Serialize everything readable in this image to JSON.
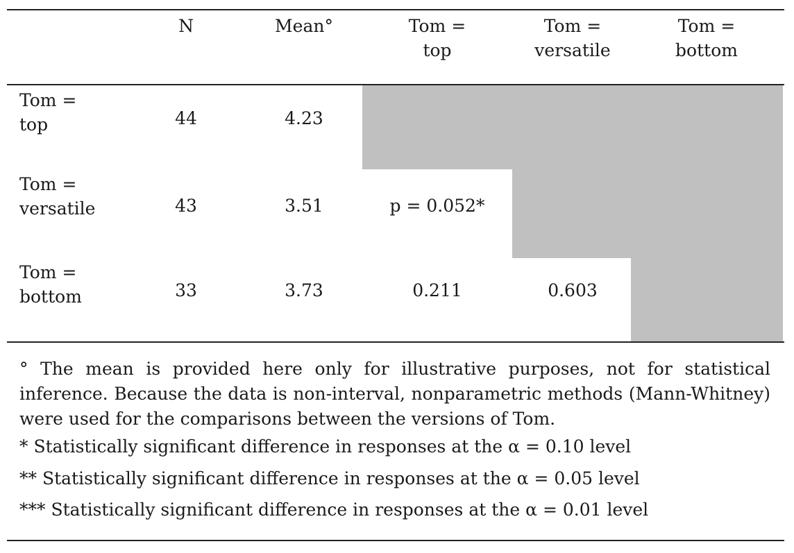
{
  "table": {
    "headers": {
      "n": "N",
      "mean": "Mean°",
      "col_top": [
        "Tom =",
        "top"
      ],
      "col_versatile": [
        "Tom =",
        "versatile"
      ],
      "col_bottom": [
        "Tom =",
        "bottom"
      ]
    },
    "rows": [
      {
        "label": [
          "Tom =",
          "top"
        ],
        "n": "44",
        "mean": "4.23",
        "vs_top": "",
        "vs_versatile": ""
      },
      {
        "label": [
          "Tom =",
          "versatile"
        ],
        "n": "43",
        "mean": "3.51",
        "vs_top": "p = 0.052*",
        "vs_versatile": ""
      },
      {
        "label": [
          "Tom =",
          "bottom"
        ],
        "n": "33",
        "mean": "3.73",
        "vs_top": "0.211",
        "vs_versatile": "0.603"
      }
    ],
    "shading_color": "#c0c0c0"
  },
  "notes": {
    "degree": "°  The mean is provided here only for illustrative purposes, not for statistical inference. Because the data is non-interval, nonparametric methods (Mann-Whitney) were used for the comparisons between the versions of Tom.",
    "one_star": "*  Statistically significant difference in responses at the α = 0.10 level",
    "two_star": "**  Statistically significant difference in responses at the α = 0.05 level",
    "three_star": "***  Statistically significant difference in responses at the α = 0.01 level"
  }
}
